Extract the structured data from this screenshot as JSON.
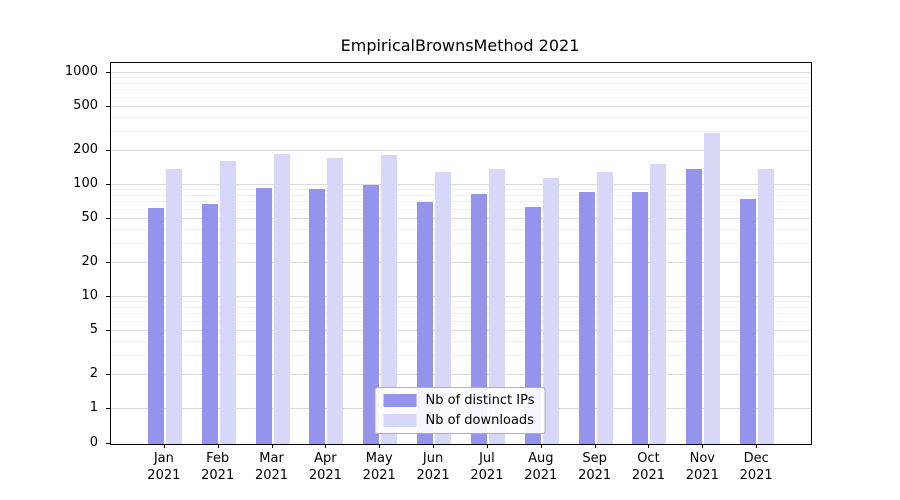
{
  "chart_data": {
    "type": "bar",
    "title": "EmpiricalBrownsMethod 2021",
    "categories": [
      "Jan 2021",
      "Feb 2021",
      "Mar 2021",
      "Apr 2021",
      "May 2021",
      "Jun 2021",
      "Jul 2021",
      "Aug 2021",
      "Sep 2021",
      "Oct 2021",
      "Nov 2021",
      "Dec 2021"
    ],
    "series": [
      {
        "name": "Nb of distinct IPs",
        "color": "#9494ec",
        "values": [
          62,
          67,
          95,
          92,
          100,
          70,
          83,
          63,
          86,
          86,
          140,
          75
        ]
      },
      {
        "name": "Nb of downloads",
        "color": "#d7d7f8",
        "values": [
          140,
          165,
          190,
          175,
          185,
          130,
          140,
          115,
          132,
          155,
          290,
          140
        ]
      }
    ],
    "yscale": "symlog",
    "yticks": [
      0,
      1,
      2,
      5,
      10,
      20,
      50,
      100,
      200,
      500,
      1000
    ],
    "ylim": [
      0,
      1200
    ],
    "grid": true,
    "legend_position": "lower center"
  }
}
